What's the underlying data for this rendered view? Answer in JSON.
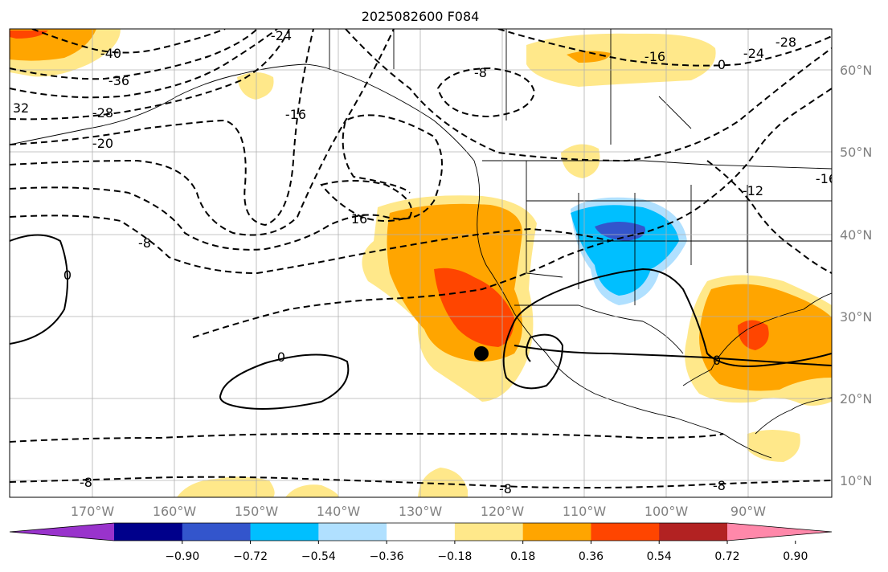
{
  "title": "2025082600 F084",
  "lon_labels": [
    "170°W",
    "160°W",
    "150°W",
    "140°W",
    "130°W",
    "120°W",
    "110°W",
    "100°W",
    "90°W"
  ],
  "lat_labels": [
    "60°N",
    "50°N",
    "40°N",
    "30°N",
    "20°N",
    "10°N"
  ],
  "contour_labels": [
    "-40",
    "-36",
    "32",
    "-28",
    "-20",
    "-24",
    "-16",
    "16",
    "-8",
    "-8",
    "0",
    "0",
    "0",
    "-8",
    "-8",
    "-8",
    "-16",
    "-24",
    "-28",
    "-12",
    "-16",
    "0"
  ],
  "colorbar": {
    "ticks": [
      "−0.90",
      "−0.72",
      "−0.54",
      "−0.36",
      "−0.18",
      "0.18",
      "0.36",
      "0.54",
      "0.72",
      "0.90"
    ],
    "colors": [
      "#9933cc",
      "#00008b",
      "#3355cc",
      "#00bfff",
      "#b0e0ff",
      "#ffffff",
      "#ffe88a",
      "#ffa500",
      "#ff4500",
      "#b22222",
      "#ff88aa"
    ]
  },
  "marker": "black-dot"
}
